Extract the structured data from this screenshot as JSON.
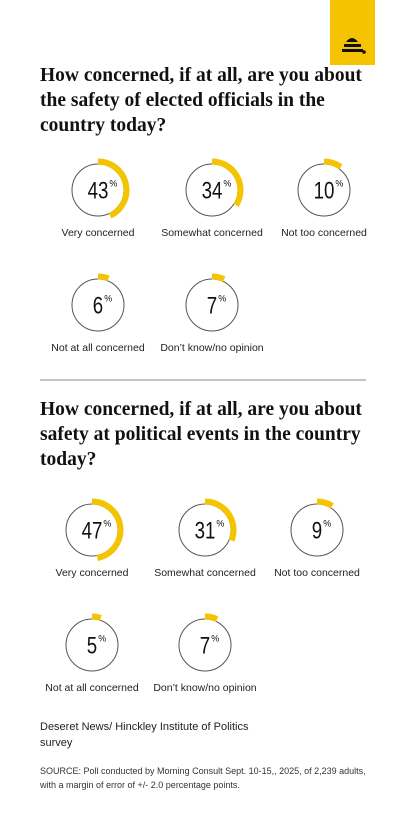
{
  "chart_data": [
    {
      "type": "ring",
      "title": "How concerned, if at all, are you about the safety of elected officials in the country today?",
      "categories": [
        "Very concerned",
        "Somewhat concerned",
        "Not too concerned",
        "Not at all concerned",
        "Don’t know/no opinion"
      ],
      "values": [
        43,
        34,
        10,
        6,
        7
      ],
      "unit": "%",
      "color": "#f5c400"
    },
    {
      "type": "ring",
      "title": "How concerned, if at all, are you about safety at political events in the country today?",
      "categories": [
        "Very concerned",
        "Somewhat concerned",
        "Not too concerned",
        "Not at all concerned",
        "Don’t know/no opinion"
      ],
      "values": [
        47,
        31,
        9,
        5,
        7
      ],
      "unit": "%",
      "color": "#f5c400"
    }
  ],
  "credit": "Deseret News/ Hinckley Institute of Politics survey",
  "source": "SOURCE: Poll conducted by Morning Consult Sept. 10-15,, 2025, of 2,239 adults, with a margin of error of +/- 2.0 percentage points."
}
